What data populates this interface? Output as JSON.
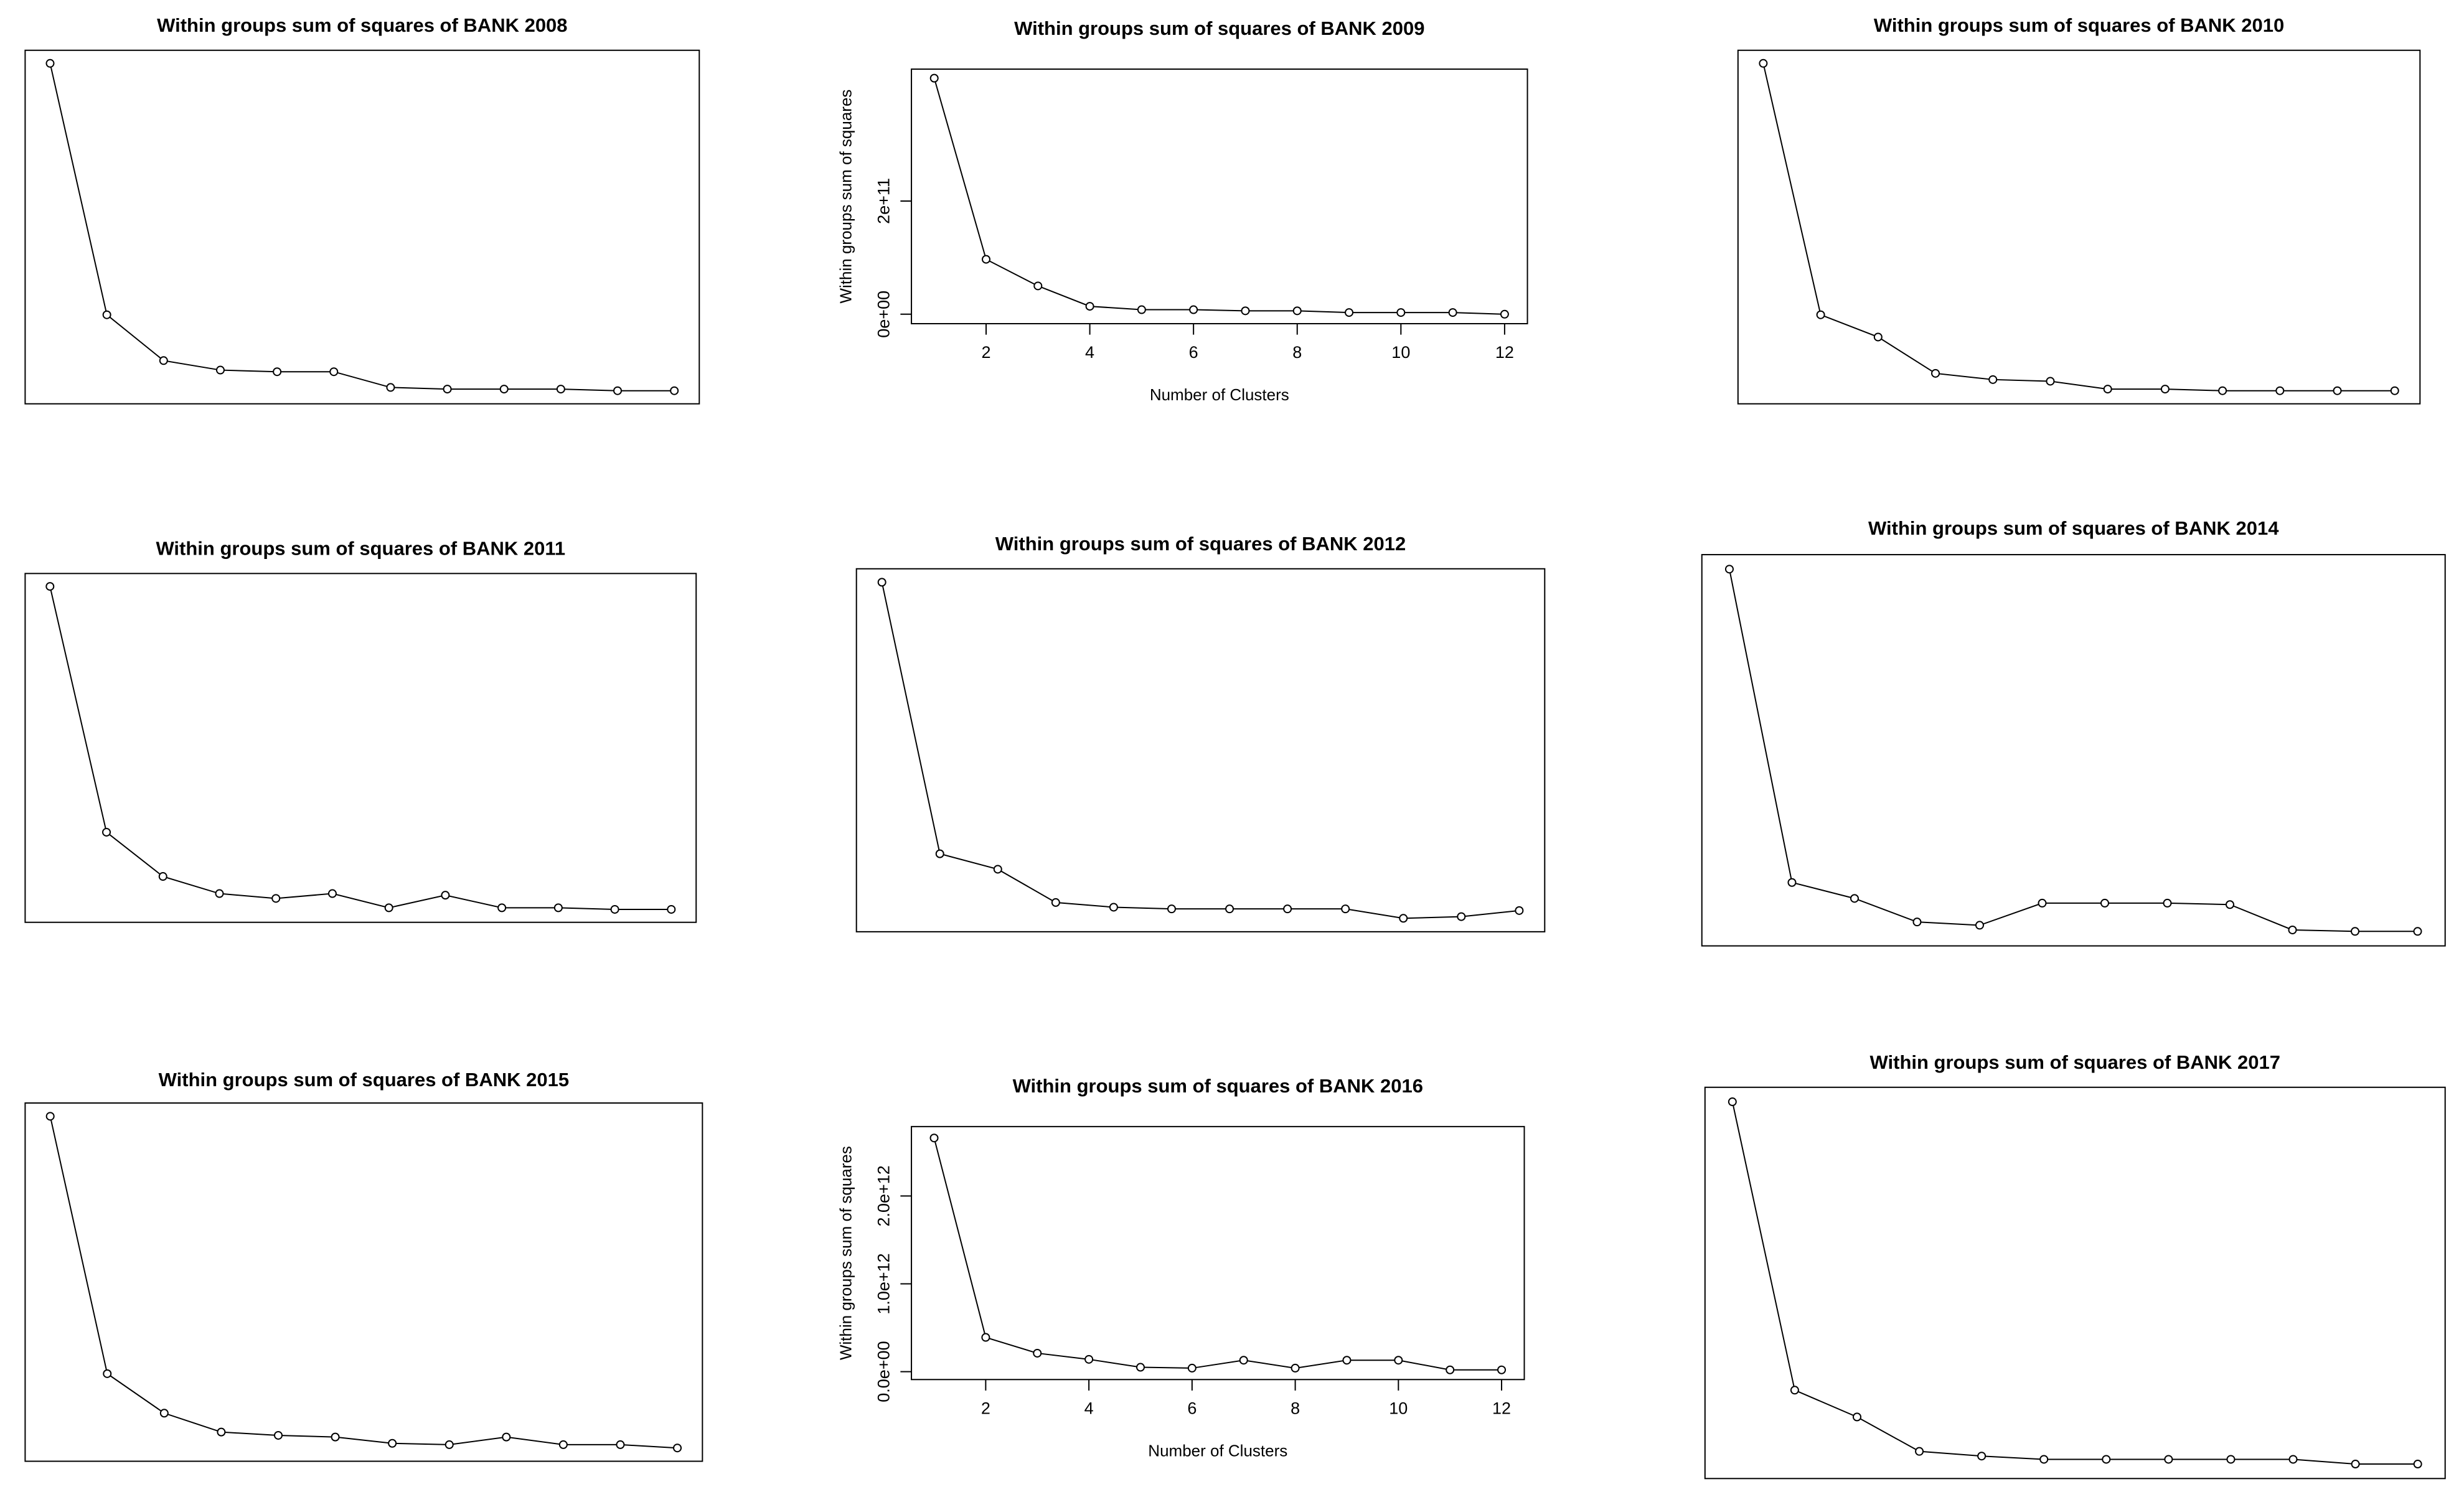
{
  "chart_data": [
    {
      "type": "line",
      "title": "Within groups sum of squares of BANK 2008",
      "color": "#000000",
      "x": [
        1,
        2,
        3,
        4,
        5,
        6,
        7,
        8,
        9,
        10,
        11,
        12
      ],
      "values": [
        100,
        23.2,
        9.2,
        6.3,
        5.8,
        5.8,
        1.0,
        0.5,
        0.5,
        0.5,
        0,
        0
      ]
    },
    {
      "type": "line",
      "title": "Within groups sum of squares of BANK 2009",
      "color": "#000000",
      "xlabel": "Number of Clusters",
      "ylabel": "Within groups sum of squares",
      "x": [
        1,
        2,
        3,
        4,
        5,
        6,
        7,
        8,
        9,
        10,
        11,
        12
      ],
      "values": [
        417000000000,
        97000000000,
        50000000000,
        14000000000,
        8000000000,
        8000000000,
        6000000000,
        6000000000,
        3000000000,
        3000000000,
        3000000000,
        0
      ],
      "xlim": [
        0.56,
        12.44
      ],
      "ylim": [
        -16700000000,
        433000000000
      ],
      "xticks": [
        2,
        4,
        6,
        8,
        10,
        12
      ],
      "yticks": [
        {
          "value": 0,
          "label": "0e+00"
        },
        {
          "value": 200000000000,
          "label": "2e+11"
        }
      ]
    },
    {
      "type": "line",
      "title": "Within groups sum of squares of BANK 2010",
      "color": "#000000",
      "x": [
        1,
        2,
        3,
        4,
        5,
        6,
        7,
        8,
        9,
        10,
        11,
        12
      ],
      "values": [
        100,
        23.2,
        16.4,
        5.3,
        3.4,
        2.9,
        0.5,
        0.5,
        0,
        0,
        0,
        0
      ]
    },
    {
      "type": "line",
      "title": "Within groups sum of squares of BANK 2011",
      "color": "#000000",
      "x": [
        1,
        2,
        3,
        4,
        5,
        6,
        7,
        8,
        9,
        10,
        11,
        12
      ],
      "values": [
        100,
        23.9,
        10.2,
        4.9,
        3.4,
        4.9,
        0.5,
        4.4,
        0.5,
        0.5,
        0,
        0
      ]
    },
    {
      "type": "line",
      "title": "Within groups sum of squares of BANK 2012",
      "color": "#000000",
      "x": [
        1,
        2,
        3,
        4,
        5,
        6,
        7,
        8,
        9,
        10,
        11,
        12
      ],
      "values": [
        100,
        19.2,
        14.6,
        4.7,
        3.3,
        2.8,
        2.8,
        2.8,
        2.8,
        0,
        0.5,
        2.3
      ]
    },
    {
      "type": "line",
      "title": "Within groups sum of squares of BANK 2014",
      "color": "#000000",
      "x": [
        1,
        2,
        3,
        4,
        5,
        6,
        7,
        8,
        9,
        10,
        11,
        12
      ],
      "values": [
        100,
        13.5,
        9.1,
        2.6,
        1.7,
        7.8,
        7.8,
        7.8,
        7.4,
        0.4,
        0,
        0
      ]
    },
    {
      "type": "line",
      "title": "Within groups sum of squares of BANK 2015",
      "color": "#000000",
      "x": [
        1,
        2,
        3,
        4,
        5,
        6,
        7,
        8,
        9,
        10,
        11,
        12
      ],
      "values": [
        100,
        22.4,
        10.5,
        4.8,
        3.8,
        3.3,
        1.4,
        1.0,
        3.3,
        1.0,
        1.0,
        0
      ]
    },
    {
      "type": "line",
      "title": "Within groups sum of squares of BANK 2016",
      "color": "#000000",
      "xlabel": "Number of Clusters",
      "ylabel": "Within groups sum of squares",
      "x": [
        1,
        2,
        3,
        4,
        5,
        6,
        7,
        8,
        9,
        10,
        11,
        12
      ],
      "values": [
        2660000000000,
        390000000000,
        210000000000,
        140000000000,
        50000000000,
        40000000000,
        130000000000,
        40000000000,
        130000000000,
        130000000000,
        20000000000,
        20000000000
      ],
      "xlim": [
        0.56,
        12.44
      ],
      "ylim": [
        -90000000000,
        2790000000000
      ],
      "xticks": [
        2,
        4,
        6,
        8,
        10,
        12
      ],
      "yticks": [
        {
          "value": 0,
          "label": "0.0e+00"
        },
        {
          "value": 1000000000000,
          "label": "1.0e+12"
        },
        {
          "value": 2000000000000,
          "label": "2.0e+12"
        }
      ]
    },
    {
      "type": "line",
      "title": "Within groups sum of squares of BANK 2017",
      "color": "#000000",
      "x": [
        1,
        2,
        3,
        4,
        5,
        6,
        7,
        8,
        9,
        10,
        11,
        12
      ],
      "values": [
        100,
        20.4,
        13.0,
        3.5,
        2.2,
        1.3,
        1.3,
        1.3,
        1.3,
        1.3,
        0,
        0
      ]
    }
  ]
}
